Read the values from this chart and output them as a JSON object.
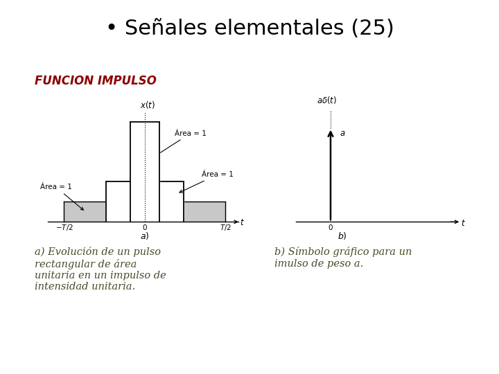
{
  "title": "• Señales elementales (25)",
  "subtitle": "FUNCION IMPULSO",
  "caption_a": "a) Evolución de un pulso\nrectangular de área\nunitaria en un impulso de\nintensidad unitaria.",
  "caption_b": "b) Símbolo gráfico para un\nimulso de peso a.",
  "bg_color": "#ffffff",
  "title_color": "#000000",
  "subtitle_color": "#8b0000",
  "caption_color": "#4a4a2a",
  "shade_color": "#c8c8c8"
}
